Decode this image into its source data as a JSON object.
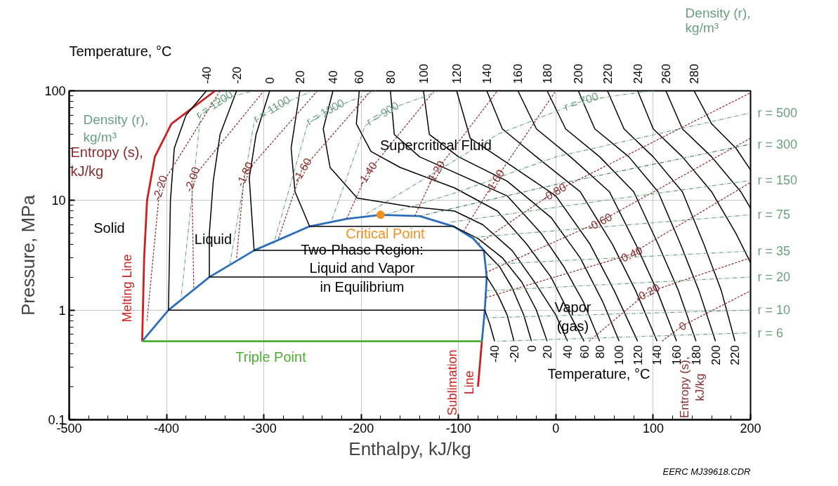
{
  "chart_data": {
    "type": "line",
    "xlabel": "Enthalpy, kJ/kg",
    "ylabel": "Pressure, MPa",
    "xlim": [
      -500,
      200
    ],
    "ylim": [
      0.1,
      100
    ],
    "xticks": [
      -500,
      -400,
      -300,
      -200,
      -100,
      0,
      100,
      200
    ],
    "yticks": [
      0.1,
      1,
      10,
      100
    ],
    "log": "y",
    "grid": true,
    "series": [
      {
        "color": "#000000",
        "line_style": "solid",
        "name": "-40",
        "x": [
          -359,
          -380,
          -392,
          -396,
          -398,
          -73,
          -68,
          -63
        ],
        "values": [
          100,
          60,
          30,
          10,
          1,
          1,
          0.75,
          0.52
        ]
      },
      {
        "color": "#000000",
        "line_style": "solid",
        "name": "-20",
        "x": [
          -328,
          -345,
          -352,
          -356,
          -356,
          -71,
          -60,
          -50,
          -43
        ],
        "values": [
          100,
          40,
          15,
          5,
          2,
          2,
          1.4,
          0.9,
          0.52
        ]
      },
      {
        "color": "#000000",
        "line_style": "solid",
        "name": "0",
        "x": [
          -294,
          -308,
          -315,
          -310,
          -74,
          -58,
          -45,
          -33,
          -25
        ],
        "values": [
          100,
          40,
          16,
          3.5,
          3.5,
          2.5,
          1.6,
          0.9,
          0.52
        ]
      },
      {
        "color": "#000000",
        "line_style": "solid",
        "name": "20",
        "x": [
          -263,
          -272,
          -268,
          -253,
          -105,
          -80,
          -55,
          -35,
          -20,
          -9
        ],
        "values": [
          100,
          30,
          12,
          5.8,
          5.8,
          4.5,
          3,
          1.8,
          1,
          0.52
        ]
      },
      {
        "color": "#000000",
        "line_style": "solid",
        "name": "40",
        "x": [
          -229,
          -239,
          -232,
          -204,
          -150,
          -104,
          -75,
          -45,
          -20,
          0,
          12
        ],
        "values": [
          100,
          45,
          20,
          10.5,
          8.8,
          8,
          6,
          3.5,
          1.7,
          0.9,
          0.52
        ]
      },
      {
        "color": "#000000",
        "line_style": "solid",
        "name": "60",
        "x": [
          -202,
          -205,
          -190,
          -160,
          -104,
          -60,
          -30,
          -5,
          12,
          29
        ],
        "values": [
          100,
          50,
          28,
          20,
          13,
          8,
          4,
          2,
          1,
          0.52
        ]
      },
      {
        "color": "#000000",
        "line_style": "solid",
        "name": "80",
        "x": [
          -170,
          -166,
          -140,
          -104,
          -50,
          -15,
          8,
          28,
          45
        ],
        "values": [
          100,
          40,
          25,
          18,
          11,
          5,
          2.5,
          1.2,
          0.52
        ]
      },
      {
        "color": "#000000",
        "line_style": "solid",
        "name": "100",
        "x": [
          -136,
          -130,
          -100,
          -50,
          -5,
          25,
          48,
          65
        ],
        "values": [
          100,
          40,
          25,
          15,
          7,
          3,
          1.2,
          0.52
        ]
      },
      {
        "color": "#000000",
        "line_style": "solid",
        "name": "120",
        "x": [
          -102,
          -88,
          -50,
          0,
          35,
          60,
          84
        ],
        "values": [
          100,
          37,
          22,
          11,
          4,
          1.5,
          0.52
        ]
      },
      {
        "color": "#000000",
        "line_style": "solid",
        "name": "140",
        "x": [
          -71,
          -55,
          -20,
          25,
          58,
          82,
          104
        ],
        "values": [
          100,
          45,
          25,
          12,
          4,
          1.5,
          0.52
        ]
      },
      {
        "color": "#000000",
        "line_style": "solid",
        "name": "160",
        "x": [
          -39,
          -20,
          15,
          55,
          82,
          104,
          124
        ],
        "values": [
          100,
          45,
          25,
          12,
          4,
          1.5,
          0.52
        ]
      },
      {
        "color": "#000000",
        "line_style": "solid",
        "name": "180",
        "x": [
          -9,
          10,
          45,
          80,
          105,
          126,
          144
        ],
        "values": [
          100,
          45,
          25,
          12,
          4,
          1.5,
          0.52
        ]
      },
      {
        "color": "#000000",
        "line_style": "solid",
        "name": "200",
        "x": [
          23,
          40,
          75,
          105,
          128,
          147,
          164
        ],
        "values": [
          100,
          45,
          25,
          12,
          4,
          1.5,
          0.52
        ]
      },
      {
        "color": "#000000",
        "line_style": "solid",
        "name": "220",
        "x": [
          53,
          70,
          100,
          130,
          152,
          170,
          184
        ],
        "values": [
          100,
          45,
          25,
          12,
          4,
          1.5,
          0.52
        ]
      },
      {
        "color": "#000000",
        "line_style": "solid",
        "name": "240",
        "x": [
          84,
          100,
          130,
          160,
          185,
          200
        ],
        "values": [
          100,
          45,
          25,
          12,
          5,
          2.7
        ]
      },
      {
        "color": "#000000",
        "line_style": "solid",
        "name": "260",
        "x": [
          113,
          130,
          160,
          190,
          200
        ],
        "values": [
          100,
          45,
          25,
          12,
          8.5
        ]
      },
      {
        "color": "#000000",
        "line_style": "solid",
        "name": "280",
        "x": [
          142,
          160,
          185,
          200
        ],
        "values": [
          100,
          50,
          30,
          19
        ]
      },
      {
        "color": "#8b2a2a",
        "line_style": "dotted",
        "name": "-2.20",
        "x": [
          -420,
          -407,
          -345
        ],
        "values": [
          0.8,
          13,
          100
        ]
      },
      {
        "color": "#8b2a2a",
        "line_style": "dotted",
        "name": "-2.00",
        "x": [
          -372,
          -374,
          -300
        ],
        "values": [
          1.6,
          15.6,
          100
        ]
      },
      {
        "color": "#8b2a2a",
        "line_style": "dotted",
        "name": "-1.80",
        "x": [
          -328,
          -320,
          -245
        ],
        "values": [
          3.0,
          17.4,
          100
        ]
      },
      {
        "color": "#8b2a2a",
        "line_style": "dotted",
        "name": "-1.60",
        "x": [
          -285,
          -261,
          -190
        ],
        "values": [
          4.5,
          19,
          100
        ]
      },
      {
        "color": "#8b2a2a",
        "line_style": "dotted",
        "name": "-1.40",
        "x": [
          -215,
          -194,
          -125
        ],
        "values": [
          6.8,
          17.6,
          100
        ]
      },
      {
        "color": "#8b2a2a",
        "line_style": "dotted",
        "name": "-1.20",
        "x": [
          -145,
          -124,
          -60
        ],
        "values": [
          7.2,
          18,
          100
        ]
      },
      {
        "color": "#8b2a2a",
        "line_style": "dotted",
        "name": "-1.00",
        "x": [
          -95,
          -63,
          0
        ],
        "values": [
          5.2,
          15,
          100
        ]
      },
      {
        "color": "#8b2a2a",
        "line_style": "dotted",
        "name": "-0.80",
        "x": [
          -80,
          -2,
          200
        ],
        "values": [
          4,
          11.9,
          96
        ]
      },
      {
        "color": "#8b2a2a",
        "line_style": "dotted",
        "name": "-0.60",
        "x": [
          -72,
          45,
          200
        ],
        "values": [
          2.2,
          6.4,
          37
        ]
      },
      {
        "color": "#8b2a2a",
        "line_style": "dotted",
        "name": "-0.40",
        "x": [
          -72,
          76,
          200
        ],
        "values": [
          1.3,
          3.2,
          14.6
        ]
      },
      {
        "color": "#8b2a2a",
        "line_style": "dotted",
        "name": "-0.20",
        "x": [
          34,
          94,
          200
        ],
        "values": [
          0.52,
          1.45,
          3
        ]
      },
      {
        "color": "#8b2a2a",
        "line_style": "dotted",
        "name": "0",
        "x": [
          109,
          130,
          200
        ],
        "values": [
          0.52,
          0.72,
          1.5
        ]
      },
      {
        "color": "#6a9f7f",
        "line_style": "dashed",
        "name": "r = 1200",
        "x": [
          -385,
          -365,
          -351,
          -335,
          -310
        ],
        "values": [
          1.3,
          60,
          75,
          88,
          100
        ]
      },
      {
        "color": "#6a9f7f",
        "line_style": "dashed",
        "name": "r = 1100",
        "x": [
          -335,
          -310,
          -292,
          -272,
          -250
        ],
        "values": [
          2.6,
          52,
          68,
          82,
          100
        ]
      },
      {
        "color": "#6a9f7f",
        "line_style": "dashed",
        "name": "r = 1000",
        "x": [
          -290,
          -255,
          -237,
          -215,
          -185
        ],
        "values": [
          4,
          50,
          64,
          78,
          100
        ]
      },
      {
        "color": "#6a9f7f",
        "line_style": "dashed",
        "name": "r = 900",
        "x": [
          -230,
          -196,
          -178,
          -158,
          -125
        ],
        "values": [
          6.7,
          48,
          62,
          75,
          95
        ]
      },
      {
        "color": "#6a9f7f",
        "line_style": "dashed",
        "name": "r = 700",
        "x": [
          -195,
          -60,
          26,
          60,
          100
        ],
        "values": [
          7.5,
          40,
          80,
          90,
          100
        ]
      },
      {
        "color": "#6a9f7f",
        "line_style": "dashed",
        "name": "r = 500",
        "x": [
          -175,
          -100,
          0,
          200
        ],
        "values": [
          7.4,
          12,
          25,
          63
        ]
      },
      {
        "color": "#3d7070",
        "line_style": "dashed",
        "name": "r = 300",
        "x": [
          -140,
          0,
          200
        ],
        "values": [
          7.2,
          14,
          32.6
        ]
      },
      {
        "color": "#6a9f7f",
        "line_style": "dashed",
        "name": "r = 150",
        "x": [
          -110,
          50,
          200
        ],
        "values": [
          6.3,
          10,
          15.2
        ]
      },
      {
        "color": "#6a9f7f",
        "line_style": "dashed",
        "name": "r = 75",
        "x": [
          -85,
          200
        ],
        "values": [
          4.6,
          7.4
        ]
      },
      {
        "color": "#6a9f7f",
        "line_style": "dashed",
        "name": "r = 35",
        "x": [
          -73,
          200
        ],
        "values": [
          2.6,
          3.45
        ]
      },
      {
        "color": "#6a9f7f",
        "line_style": "dashed",
        "name": "r = 20",
        "x": [
          -72,
          200
        ],
        "values": [
          1.5,
          2.0
        ]
      },
      {
        "color": "#6a9f7f",
        "line_style": "dashed",
        "name": "r = 10",
        "x": [
          -73,
          200
        ],
        "values": [
          0.85,
          1.0
        ]
      },
      {
        "color": "#6a9f7f",
        "line_style": "dashed",
        "name": "r = 6",
        "x": [
          -60,
          200
        ],
        "values": [
          0.52,
          0.62
        ]
      },
      {
        "color": "#2a6ebb",
        "line_style": "solid",
        "x": [
          -425,
          -398,
          -356,
          -310,
          -253,
          -215,
          -180,
          -140,
          -105,
          -85,
          -74,
          -71,
          -73,
          -76
        ],
        "values": [
          0.52,
          1,
          2,
          3.5,
          5.8,
          6.8,
          7.4,
          7.2,
          5.8,
          4.5,
          3.5,
          2,
          1,
          0.52
        ]
      },
      {
        "color": "#cc1f1f",
        "line_style": "solid",
        "x": [
          -425,
          -423,
          -420,
          -412,
          -395,
          -350
        ],
        "values": [
          0.52,
          3,
          10,
          25,
          50,
          100
        ]
      },
      {
        "color": "#cc1f1f",
        "line_style": "solid",
        "x": [
          -76,
          -80
        ],
        "values": [
          0.52,
          0.2
        ]
      },
      {
        "color": "#4caf32",
        "line_style": "solid",
        "x": [
          -425,
          -76
        ],
        "values": [
          0.52,
          0.52
        ]
      },
      {
        "type": "scatter",
        "color": "#f0901e",
        "marker": "circle",
        "x": [
          -180
        ],
        "values": [
          7.4
        ]
      }
    ],
    "annotations": [
      "Temperature, °C",
      "Density (r),\nkg/m³",
      "EERC MJ39618.CDR",
      "Density (r),\nkg/m³",
      "Entropy (s),\nkJ/kg",
      "Solid",
      "Liquid",
      "Supercritical Fluid",
      "Two-Phase Region:\nLiquid and Vapor\nin Equilibrium",
      "Critical Point",
      "Triple Point",
      "Melting Line",
      "Sublimation\nLine",
      "Vapor\n(gas)",
      "Temperature, °C",
      "Entropy (s),\nkJ/kg"
    ]
  }
}
